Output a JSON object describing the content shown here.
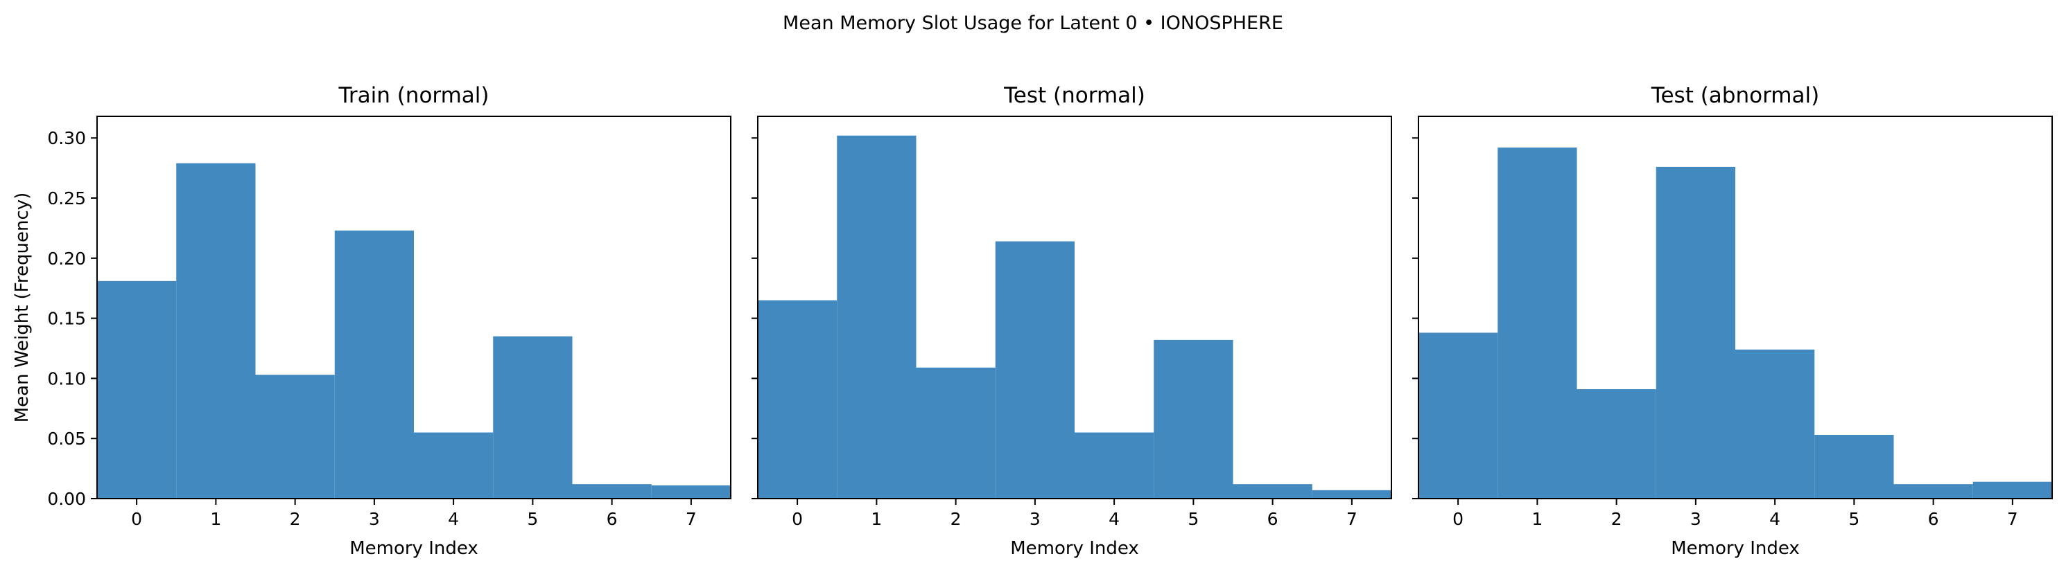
{
  "figure": {
    "suptitle": "Mean Memory Slot Usage for Latent 0 • IONOSPHERE"
  },
  "chart_data": [
    {
      "type": "bar",
      "title": "Train (normal)",
      "xlabel": "Memory Index",
      "ylabel": "Mean Weight (Frequency)",
      "categories": [
        "0",
        "1",
        "2",
        "3",
        "4",
        "5",
        "6",
        "7"
      ],
      "values": [
        0.181,
        0.279,
        0.103,
        0.223,
        0.055,
        0.135,
        0.012,
        0.011
      ],
      "ylim": [
        0,
        0.318
      ],
      "yticks": [
        "0.00",
        "0.05",
        "0.10",
        "0.15",
        "0.20",
        "0.25",
        "0.30"
      ],
      "bar_color": "#4289c0",
      "grid": false
    },
    {
      "type": "bar",
      "title": "Test (normal)",
      "xlabel": "Memory Index",
      "ylabel": "",
      "categories": [
        "0",
        "1",
        "2",
        "3",
        "4",
        "5",
        "6",
        "7"
      ],
      "values": [
        0.165,
        0.302,
        0.109,
        0.214,
        0.055,
        0.132,
        0.012,
        0.007
      ],
      "ylim": [
        0,
        0.318
      ],
      "yticks": [
        "0.00",
        "0.05",
        "0.10",
        "0.15",
        "0.20",
        "0.25",
        "0.30"
      ],
      "bar_color": "#4289c0",
      "grid": false
    },
    {
      "type": "bar",
      "title": "Test (abnormal)",
      "xlabel": "Memory Index",
      "ylabel": "",
      "categories": [
        "0",
        "1",
        "2",
        "3",
        "4",
        "5",
        "6",
        "7"
      ],
      "values": [
        0.138,
        0.292,
        0.091,
        0.276,
        0.124,
        0.053,
        0.012,
        0.014
      ],
      "ylim": [
        0,
        0.318
      ],
      "yticks": [
        "0.00",
        "0.05",
        "0.10",
        "0.15",
        "0.20",
        "0.25",
        "0.30"
      ],
      "bar_color": "#4289c0",
      "grid": false
    }
  ]
}
